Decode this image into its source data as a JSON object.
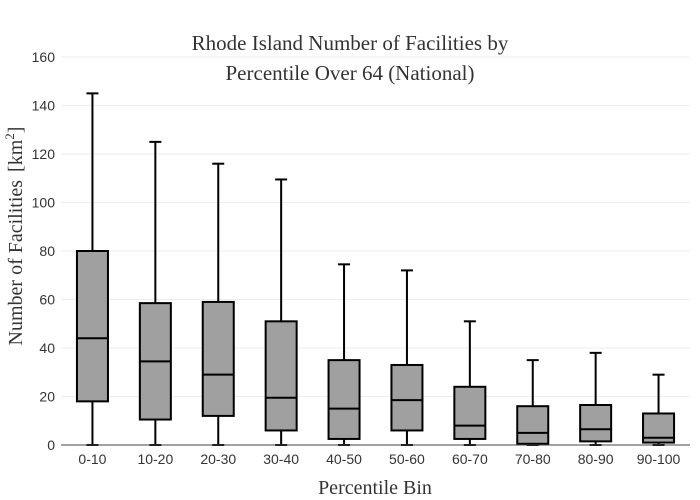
{
  "chart_data": {
    "type": "box",
    "title_lines": [
      "Rhode Island Number of Facilities by",
      "Percentile Over 64 (National)"
    ],
    "xlabel": "Percentile Bin",
    "ylabel": "Number of Facilities",
    "ylabel_unit_base": "[km",
    "ylabel_unit_sup": "2",
    "ylabel_unit_close": "]",
    "ylim": [
      0,
      160
    ],
    "yticks": [
      0,
      20,
      40,
      60,
      80,
      100,
      120,
      140,
      160
    ],
    "grid": true,
    "categories": [
      "0-10",
      "10-20",
      "20-30",
      "30-40",
      "40-50",
      "50-60",
      "60-70",
      "70-80",
      "80-90",
      "90-100"
    ],
    "boxes": [
      {
        "min": 0,
        "q1": 18,
        "median": 44,
        "q3": 80,
        "max": 145
      },
      {
        "min": 0,
        "q1": 10.5,
        "median": 34.5,
        "q3": 58.5,
        "max": 125
      },
      {
        "min": 0,
        "q1": 12,
        "median": 29,
        "q3": 59,
        "max": 116
      },
      {
        "min": 0,
        "q1": 6,
        "median": 19.5,
        "q3": 51,
        "max": 109.5
      },
      {
        "min": 0,
        "q1": 2.5,
        "median": 15,
        "q3": 35,
        "max": 74.5
      },
      {
        "min": 0,
        "q1": 6,
        "median": 18.5,
        "q3": 33,
        "max": 72
      },
      {
        "min": 0,
        "q1": 2.5,
        "median": 8,
        "q3": 24,
        "max": 51
      },
      {
        "min": 0,
        "q1": 0.5,
        "median": 5,
        "q3": 16,
        "max": 35
      },
      {
        "min": 0,
        "q1": 1.5,
        "median": 6.5,
        "q3": 16.5,
        "max": 38
      },
      {
        "min": 0,
        "q1": 1,
        "median": 3,
        "q3": 13,
        "max": 29
      }
    ],
    "box_fill": "#a0a0a0",
    "box_stroke": "#000000"
  }
}
